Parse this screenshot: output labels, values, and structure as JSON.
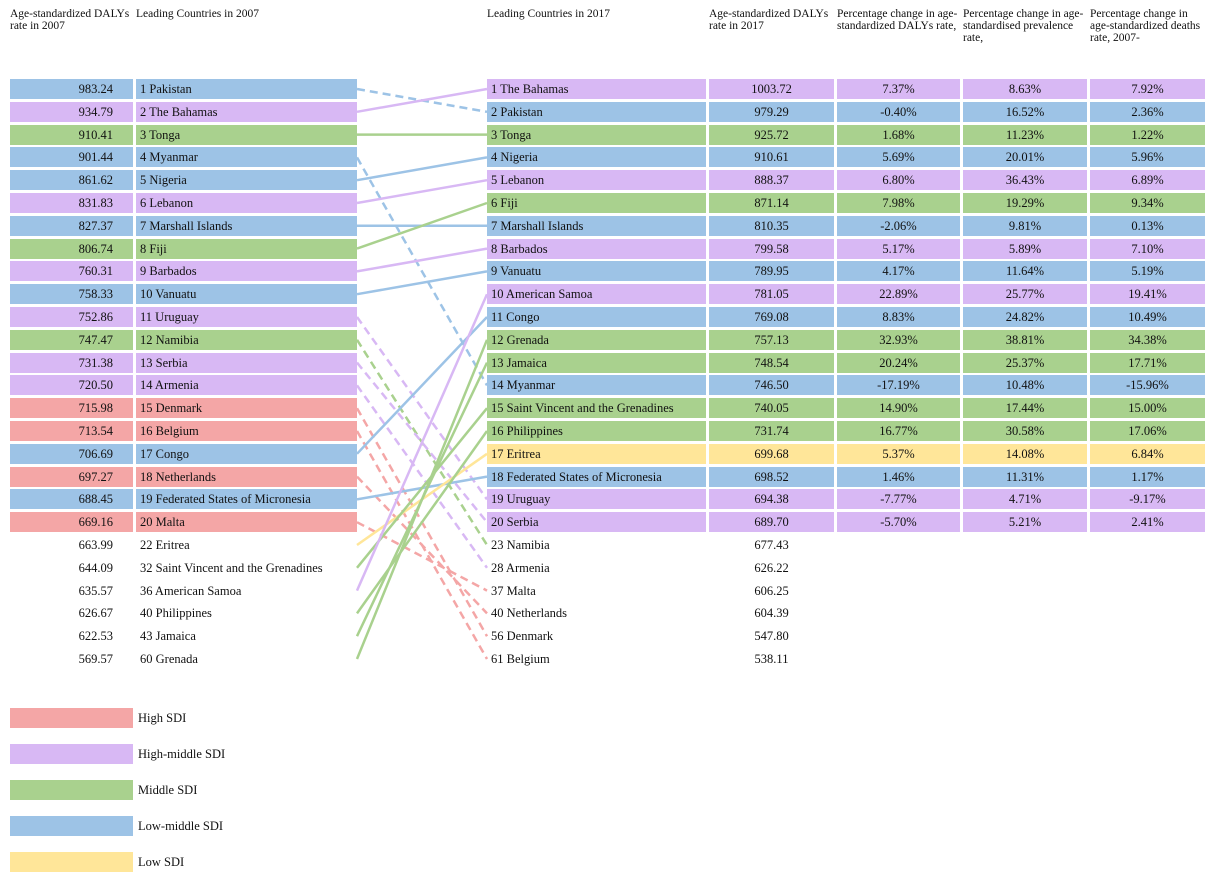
{
  "left": {
    "headers": [
      "Age-standardized DALYs rate in 2007",
      "Leading Countries in 2007"
    ],
    "rows": [
      {
        "cells": [
          "983.24",
          "1 Pakistan"
        ],
        "color": "#9dc3e6",
        "link": 1
      },
      {
        "cells": [
          "934.79",
          "2 The Bahamas"
        ],
        "color": "#d8b8f4",
        "link": 0
      },
      {
        "cells": [
          "910.41",
          "3 Tonga"
        ],
        "color": "#a9d18e",
        "link": 2
      },
      {
        "cells": [
          "901.44",
          "4 Myanmar"
        ],
        "color": "#9dc3e6",
        "link": 13
      },
      {
        "cells": [
          "861.62",
          "5 Nigeria"
        ],
        "color": "#9dc3e6",
        "link": 3
      },
      {
        "cells": [
          "831.83",
          "6 Lebanon"
        ],
        "color": "#d8b8f4",
        "link": 4
      },
      {
        "cells": [
          "827.37",
          "7 Marshall Islands"
        ],
        "color": "#9dc3e6",
        "link": 6
      },
      {
        "cells": [
          "806.74",
          "8 Fiji"
        ],
        "color": "#a9d18e",
        "link": 5
      },
      {
        "cells": [
          "760.31",
          "9 Barbados"
        ],
        "color": "#d8b8f4",
        "link": 7
      },
      {
        "cells": [
          "758.33",
          "10 Vanuatu"
        ],
        "color": "#9dc3e6",
        "link": 8
      },
      {
        "cells": [
          "752.86",
          "11 Uruguay"
        ],
        "color": "#d8b8f4",
        "link": 18
      },
      {
        "cells": [
          "747.47",
          "12 Namibia"
        ],
        "color": "#a9d18e",
        "link": 20
      },
      {
        "cells": [
          "731.38",
          "13 Serbia"
        ],
        "color": "#d8b8f4",
        "link": 19
      },
      {
        "cells": [
          "720.50",
          "14 Armenia"
        ],
        "color": "#d8b8f4",
        "link": 21
      },
      {
        "cells": [
          "715.98",
          "15 Denmark"
        ],
        "color": "#f4a6a6",
        "link": 24
      },
      {
        "cells": [
          "713.54",
          "16 Belgium"
        ],
        "color": "#f4a6a6",
        "link": 25
      },
      {
        "cells": [
          "706.69",
          "17 Congo"
        ],
        "color": "#9dc3e6",
        "link": 10
      },
      {
        "cells": [
          "697.27",
          "18 Netherlands"
        ],
        "color": "#f4a6a6",
        "link": 23
      },
      {
        "cells": [
          "688.45",
          "19 Federated States of Micronesia"
        ],
        "color": "#9dc3e6",
        "link": 17
      },
      {
        "cells": [
          "669.16",
          "20 Malta"
        ],
        "color": "#f4a6a6",
        "link": 22
      },
      {
        "cells": [
          "663.99",
          "22 Eritrea"
        ],
        "line_color": "#ffe699",
        "link": 16
      },
      {
        "cells": [
          "644.09",
          "32 Saint Vincent and the Grenadines"
        ],
        "line_color": "#a9d18e",
        "link": 14
      },
      {
        "cells": [
          "635.57",
          "36 American Samoa"
        ],
        "line_color": "#d8b8f4",
        "link": 9
      },
      {
        "cells": [
          "626.67",
          "40 Philippines"
        ],
        "line_color": "#a9d18e",
        "link": 15
      },
      {
        "cells": [
          "622.53",
          "43 Jamaica"
        ],
        "line_color": "#a9d18e",
        "link": 12
      },
      {
        "cells": [
          "569.57",
          "60 Grenada"
        ],
        "line_color": "#a9d18e",
        "link": 11
      }
    ]
  },
  "right": {
    "headers": [
      "Leading Countries in 2017",
      "Age-standardized DALYs rate in 2017",
      "Percentage change in age-standardized DALYs rate,",
      "Percentage change in age-standardised prevalence rate,",
      "Percentage change in age-standardized deaths rate, 2007-"
    ],
    "rows": [
      {
        "cells": [
          "1 The Bahamas",
          "1003.72",
          "7.37%",
          "8.63%",
          "7.92%"
        ],
        "color": "#d8b8f4"
      },
      {
        "cells": [
          "2 Pakistan",
          "979.29",
          "-0.40%",
          "16.52%",
          "2.36%"
        ],
        "color": "#9dc3e6"
      },
      {
        "cells": [
          "3 Tonga",
          "925.72",
          "1.68%",
          "11.23%",
          "1.22%"
        ],
        "color": "#a9d18e"
      },
      {
        "cells": [
          "4 Nigeria",
          "910.61",
          "5.69%",
          "20.01%",
          "5.96%"
        ],
        "color": "#9dc3e6"
      },
      {
        "cells": [
          "5 Lebanon",
          "888.37",
          "6.80%",
          "36.43%",
          "6.89%"
        ],
        "color": "#d8b8f4"
      },
      {
        "cells": [
          "6 Fiji",
          "871.14",
          "7.98%",
          "19.29%",
          "9.34%"
        ],
        "color": "#a9d18e"
      },
      {
        "cells": [
          "7 Marshall Islands",
          "810.35",
          "-2.06%",
          "9.81%",
          "0.13%"
        ],
        "color": "#9dc3e6"
      },
      {
        "cells": [
          "8 Barbados",
          "799.58",
          "5.17%",
          "5.89%",
          "7.10%"
        ],
        "color": "#d8b8f4"
      },
      {
        "cells": [
          "9 Vanuatu",
          "789.95",
          "4.17%",
          "11.64%",
          "5.19%"
        ],
        "color": "#9dc3e6"
      },
      {
        "cells": [
          "10 American Samoa",
          "781.05",
          "22.89%",
          "25.77%",
          "19.41%"
        ],
        "color": "#d8b8f4"
      },
      {
        "cells": [
          "11 Congo",
          "769.08",
          "8.83%",
          "24.82%",
          "10.49%"
        ],
        "color": "#9dc3e6"
      },
      {
        "cells": [
          "12 Grenada",
          "757.13",
          "32.93%",
          "38.81%",
          "34.38%"
        ],
        "color": "#a9d18e"
      },
      {
        "cells": [
          "13 Jamaica",
          "748.54",
          "20.24%",
          "25.37%",
          "17.71%"
        ],
        "color": "#a9d18e"
      },
      {
        "cells": [
          "14 Myanmar",
          "746.50",
          "-17.19%",
          "10.48%",
          "-15.96%"
        ],
        "color": "#9dc3e6"
      },
      {
        "cells": [
          "15 Saint Vincent and the Grenadines",
          "740.05",
          "14.90%",
          "17.44%",
          "15.00%"
        ],
        "color": "#a9d18e"
      },
      {
        "cells": [
          "16 Philippines",
          "731.74",
          "16.77%",
          "30.58%",
          "17.06%"
        ],
        "color": "#a9d18e"
      },
      {
        "cells": [
          "17 Eritrea",
          "699.68",
          "5.37%",
          "14.08%",
          "6.84%"
        ],
        "color": "#ffe699"
      },
      {
        "cells": [
          "18 Federated States of Micronesia",
          "698.52",
          "1.46%",
          "11.31%",
          "1.17%"
        ],
        "color": "#9dc3e6"
      },
      {
        "cells": [
          "19 Uruguay",
          "694.38",
          "-7.77%",
          "4.71%",
          "-9.17%"
        ],
        "color": "#d8b8f4"
      },
      {
        "cells": [
          "20 Serbia",
          "689.70",
          "-5.70%",
          "5.21%",
          "2.41%"
        ],
        "color": "#d8b8f4"
      },
      {
        "cells": [
          "23 Namibia",
          "677.43"
        ]
      },
      {
        "cells": [
          "28 Armenia",
          "626.22"
        ]
      },
      {
        "cells": [
          "37 Malta",
          "606.25"
        ]
      },
      {
        "cells": [
          "40 Netherlands",
          "604.39"
        ]
      },
      {
        "cells": [
          "56 Denmark",
          "547.80"
        ]
      },
      {
        "cells": [
          "61 Belgium",
          "538.11"
        ]
      }
    ]
  },
  "legend": [
    {
      "label": "High SDI",
      "color": "#f4a6a6"
    },
    {
      "label": "High-middle SDI",
      "color": "#d8b8f4"
    },
    {
      "label": "Middle SDI",
      "color": "#a9d18e"
    },
    {
      "label": "Low-middle SDI",
      "color": "#9dc3e6"
    },
    {
      "label": "Low SDI",
      "color": "#ffe699"
    }
  ]
}
